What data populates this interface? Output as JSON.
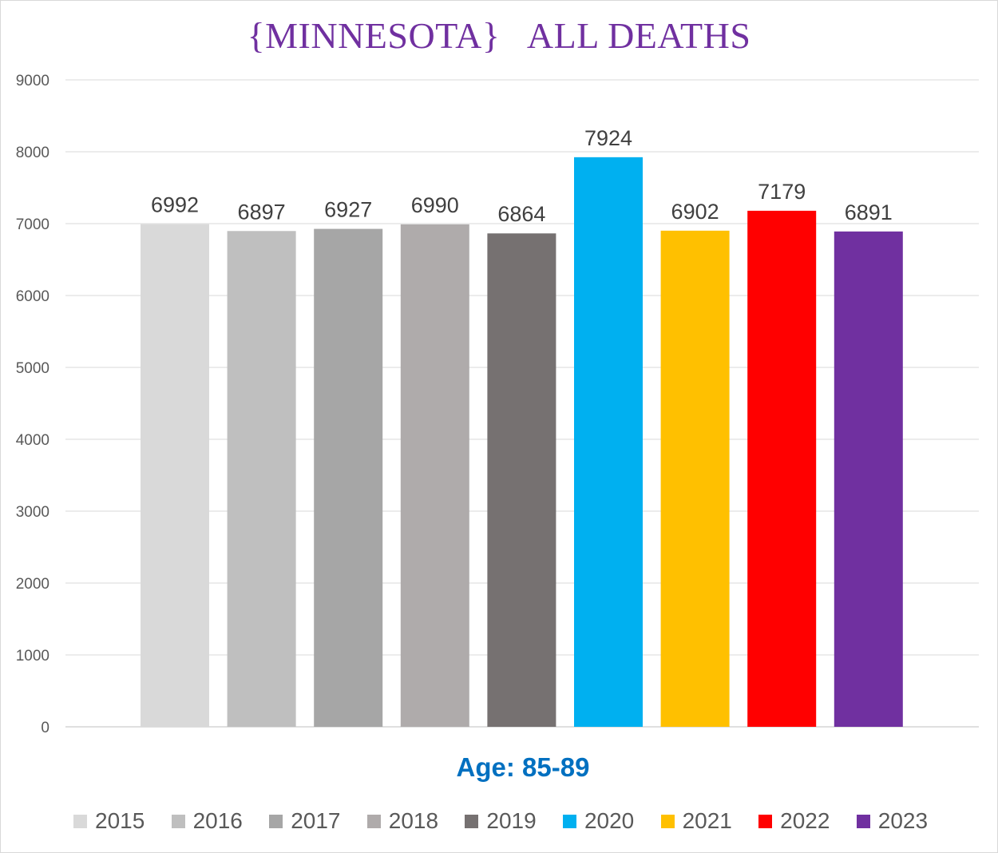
{
  "chart_data": {
    "type": "bar",
    "title": "{MINNESOTA}   ALL DEATHS",
    "xlabel": "Age: 85-89",
    "ylabel": "",
    "ylim": [
      0,
      9000
    ],
    "yticks": [
      0,
      1000,
      2000,
      3000,
      4000,
      5000,
      6000,
      7000,
      8000,
      9000
    ],
    "grid": true,
    "legend_position": "bottom",
    "categories": [
      "2015",
      "2016",
      "2017",
      "2018",
      "2019",
      "2020",
      "2021",
      "2022",
      "2023"
    ],
    "values": [
      6992,
      6897,
      6927,
      6990,
      6864,
      7924,
      6902,
      7179,
      6891
    ],
    "colors": [
      "#d9d9d9",
      "#bfbfbf",
      "#a6a6a6",
      "#afabab",
      "#767171",
      "#00b0f0",
      "#ffc000",
      "#ff0000",
      "#7030a0"
    ]
  }
}
